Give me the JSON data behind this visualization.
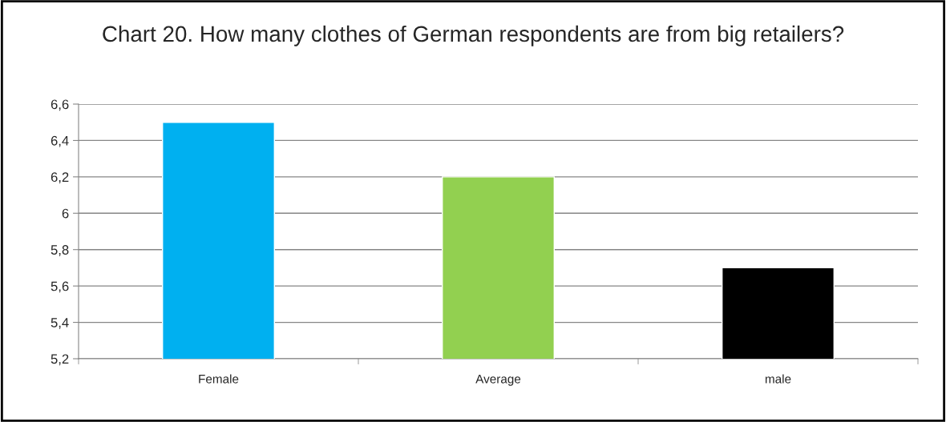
{
  "chart_data": {
    "type": "bar",
    "title": "Chart 20. How many clothes of German respondents are from big retailers?",
    "categories": [
      "Female",
      "Average",
      "male"
    ],
    "values": [
      6.5,
      6.2,
      5.7
    ],
    "colors": [
      "#00b0f0",
      "#92d050",
      "#000000"
    ],
    "ylim": [
      5.2,
      6.6
    ],
    "yticks": [
      {
        "value": 5.2,
        "label": "5,2"
      },
      {
        "value": 5.4,
        "label": "5,4"
      },
      {
        "value": 5.6,
        "label": "5,6"
      },
      {
        "value": 5.8,
        "label": "5,8"
      },
      6,
      {
        "value": 6.2,
        "label": "6,2"
      },
      {
        "value": 6.4,
        "label": "6,4"
      },
      {
        "value": 6.6,
        "label": "6,6"
      }
    ],
    "grid": "y",
    "legend": false
  }
}
